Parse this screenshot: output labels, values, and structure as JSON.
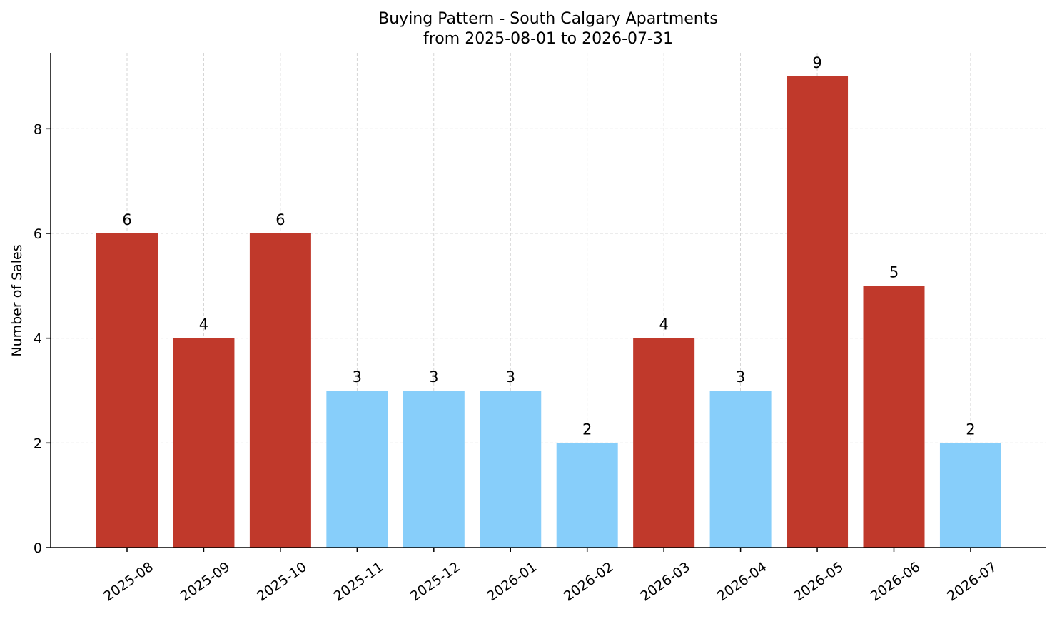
{
  "chart_data": {
    "type": "bar",
    "title": "Buying Pattern - South Calgary Apartments",
    "subtitle": "from 2025-08-01 to 2026-07-31",
    "xlabel": "",
    "ylabel": "Number of Sales",
    "categories": [
      "2025-08",
      "2025-09",
      "2025-10",
      "2025-11",
      "2025-12",
      "2026-01",
      "2026-02",
      "2026-03",
      "2026-04",
      "2026-05",
      "2026-06",
      "2026-07"
    ],
    "values": [
      6,
      4,
      6,
      3,
      3,
      3,
      2,
      4,
      3,
      9,
      5,
      2
    ],
    "ylim": [
      0,
      9.45
    ],
    "yticks": [
      0,
      2,
      4,
      6,
      8
    ],
    "grid": true,
    "legend": "none",
    "colors": {
      "high": "#c0392b",
      "low": "#87cefa"
    },
    "color_rule": "bars with value >= 4 drawn in high color; bars with value <= 3 drawn in low color"
  }
}
